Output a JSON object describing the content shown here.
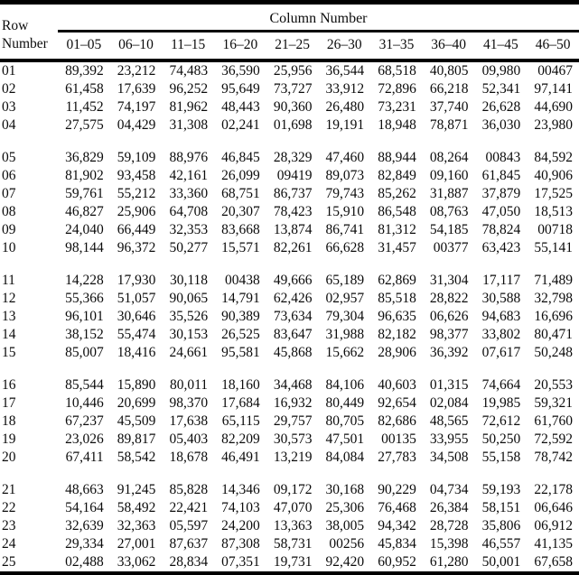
{
  "table": {
    "column_group_title": "Column Number",
    "row_header": {
      "line1": "Row",
      "line2": "Number"
    },
    "column_headers": [
      "01–05",
      "06–10",
      "11–15",
      "16–20",
      "21–25",
      "26–30",
      "31–35",
      "36–40",
      "41–45",
      "46–50"
    ],
    "groups": [
      {
        "rows": [
          {
            "row_number": "01",
            "values": [
              "89,392",
              "23,212",
              "74,483",
              "36,590",
              "25,956",
              "36,544",
              "68,518",
              "40,805",
              "09,980",
              "00467"
            ]
          },
          {
            "row_number": "02",
            "values": [
              "61,458",
              "17,639",
              "96,252",
              "95,649",
              "73,727",
              "33,912",
              "72,896",
              "66,218",
              "52,341",
              "97,141"
            ]
          },
          {
            "row_number": "03",
            "values": [
              "11,452",
              "74,197",
              "81,962",
              "48,443",
              "90,360",
              "26,480",
              "73,231",
              "37,740",
              "26,628",
              "44,690"
            ]
          },
          {
            "row_number": "04",
            "values": [
              "27,575",
              "04,429",
              "31,308",
              "02,241",
              "01,698",
              "19,191",
              "18,948",
              "78,871",
              "36,030",
              "23,980"
            ]
          }
        ]
      },
      {
        "rows": [
          {
            "row_number": "05",
            "values": [
              "36,829",
              "59,109",
              "88,976",
              "46,845",
              "28,329",
              "47,460",
              "88,944",
              "08,264",
              "00843",
              "84,592"
            ]
          },
          {
            "row_number": "06",
            "values": [
              "81,902",
              "93,458",
              "42,161",
              "26,099",
              "09419",
              "89,073",
              "82,849",
              "09,160",
              "61,845",
              "40,906"
            ]
          },
          {
            "row_number": "07",
            "values": [
              "59,761",
              "55,212",
              "33,360",
              "68,751",
              "86,737",
              "79,743",
              "85,262",
              "31,887",
              "37,879",
              "17,525"
            ]
          },
          {
            "row_number": "08",
            "values": [
              "46,827",
              "25,906",
              "64,708",
              "20,307",
              "78,423",
              "15,910",
              "86,548",
              "08,763",
              "47,050",
              "18,513"
            ]
          },
          {
            "row_number": "09",
            "values": [
              "24,040",
              "66,449",
              "32,353",
              "83,668",
              "13,874",
              "86,741",
              "81,312",
              "54,185",
              "78,824",
              "00718"
            ]
          },
          {
            "row_number": "10",
            "values": [
              "98,144",
              "96,372",
              "50,277",
              "15,571",
              "82,261",
              "66,628",
              "31,457",
              "00377",
              "63,423",
              "55,141"
            ]
          }
        ]
      },
      {
        "rows": [
          {
            "row_number": "11",
            "values": [
              "14,228",
              "17,930",
              "30,118",
              "00438",
              "49,666",
              "65,189",
              "62,869",
              "31,304",
              "17,117",
              "71,489"
            ]
          },
          {
            "row_number": "12",
            "values": [
              "55,366",
              "51,057",
              "90,065",
              "14,791",
              "62,426",
              "02,957",
              "85,518",
              "28,822",
              "30,588",
              "32,798"
            ]
          },
          {
            "row_number": "13",
            "values": [
              "96,101",
              "30,646",
              "35,526",
              "90,389",
              "73,634",
              "79,304",
              "96,635",
              "06,626",
              "94,683",
              "16,696"
            ]
          },
          {
            "row_number": "14",
            "values": [
              "38,152",
              "55,474",
              "30,153",
              "26,525",
              "83,647",
              "31,988",
              "82,182",
              "98,377",
              "33,802",
              "80,471"
            ]
          },
          {
            "row_number": "15",
            "values": [
              "85,007",
              "18,416",
              "24,661",
              "95,581",
              "45,868",
              "15,662",
              "28,906",
              "36,392",
              "07,617",
              "50,248"
            ]
          }
        ]
      },
      {
        "rows": [
          {
            "row_number": "16",
            "values": [
              "85,544",
              "15,890",
              "80,011",
              "18,160",
              "34,468",
              "84,106",
              "40,603",
              "01,315",
              "74,664",
              "20,553"
            ]
          },
          {
            "row_number": "17",
            "values": [
              "10,446",
              "20,699",
              "98,370",
              "17,684",
              "16,932",
              "80,449",
              "92,654",
              "02,084",
              "19,985",
              "59,321"
            ]
          },
          {
            "row_number": "18",
            "values": [
              "67,237",
              "45,509",
              "17,638",
              "65,115",
              "29,757",
              "80,705",
              "82,686",
              "48,565",
              "72,612",
              "61,760"
            ]
          },
          {
            "row_number": "19",
            "values": [
              "23,026",
              "89,817",
              "05,403",
              "82,209",
              "30,573",
              "47,501",
              "00135",
              "33,955",
              "50,250",
              "72,592"
            ]
          },
          {
            "row_number": "20",
            "values": [
              "67,411",
              "58,542",
              "18,678",
              "46,491",
              "13,219",
              "84,084",
              "27,783",
              "34,508",
              "55,158",
              "78,742"
            ]
          }
        ]
      },
      {
        "rows": [
          {
            "row_number": "21",
            "values": [
              "48,663",
              "91,245",
              "85,828",
              "14,346",
              "09,172",
              "30,168",
              "90,229",
              "04,734",
              "59,193",
              "22,178"
            ]
          },
          {
            "row_number": "22",
            "values": [
              "54,164",
              "58,492",
              "22,421",
              "74,103",
              "47,070",
              "25,306",
              "76,468",
              "26,384",
              "58,151",
              "06,646"
            ]
          },
          {
            "row_number": "23",
            "values": [
              "32,639",
              "32,363",
              "05,597",
              "24,200",
              "13,363",
              "38,005",
              "94,342",
              "28,728",
              "35,806",
              "06,912"
            ]
          },
          {
            "row_number": "24",
            "values": [
              "29,334",
              "27,001",
              "87,637",
              "87,308",
              "58,731",
              "00256",
              "45,834",
              "15,398",
              "46,557",
              "41,135"
            ]
          },
          {
            "row_number": "25",
            "values": [
              "02,488",
              "33,062",
              "28,834",
              "07,351",
              "19,731",
              "92,420",
              "60,952",
              "61,280",
              "50,001",
              "67,658"
            ]
          }
        ]
      }
    ]
  }
}
